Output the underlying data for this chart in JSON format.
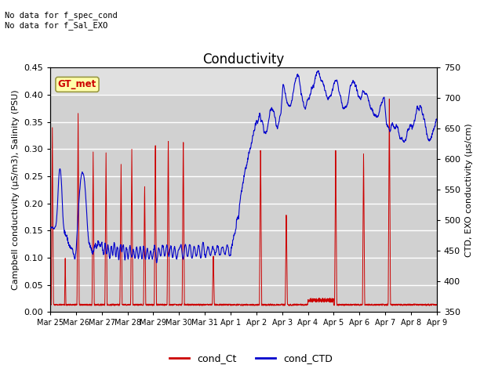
{
  "title": "Conductivity",
  "ylabel_left": "Campbell conductivity (μS/m3), Salinity (PSU)",
  "ylabel_right": "CTD, EXO conductivity (μs/cm)",
  "text_top_left": "No data for f_spec_cond\nNo data for f_Sal_EXO",
  "annotation_box": "GT_met",
  "ylim_left": [
    0.0,
    0.45
  ],
  "ylim_right": [
    350,
    750
  ],
  "yticks_left": [
    0.0,
    0.05,
    0.1,
    0.15,
    0.2,
    0.25,
    0.3,
    0.35,
    0.4,
    0.45
  ],
  "yticks_right": [
    350,
    400,
    450,
    500,
    550,
    600,
    650,
    700,
    750
  ],
  "legend_labels": [
    "cond_Ct",
    "cond_CTD"
  ],
  "color_red": "#cc0000",
  "color_blue": "#0000cc",
  "background_color": "#ffffff",
  "plot_bg_color": "#e0e0e0",
  "grid_color": "#ffffff",
  "title_fontsize": 12,
  "axis_label_fontsize": 8,
  "tick_label_fontsize": 8
}
